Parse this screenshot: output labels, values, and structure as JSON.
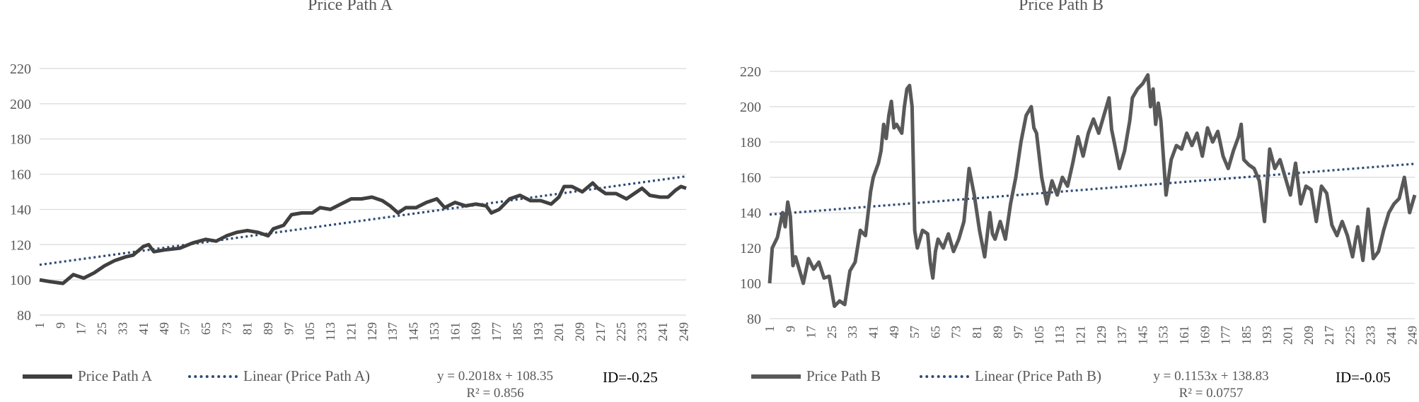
{
  "chart_data": [
    {
      "type": "line",
      "title": "Price Path A",
      "ylim": [
        80,
        220
      ],
      "y_ticks": [
        80,
        100,
        120,
        140,
        160,
        180,
        200,
        220
      ],
      "x_range": [
        1,
        250
      ],
      "x_tick_start": 1,
      "x_tick_step": 8,
      "x_ticks_shown": [
        1,
        9,
        17,
        25,
        33,
        41,
        49,
        57,
        65,
        73,
        81,
        89,
        97,
        105,
        113,
        121,
        129,
        137,
        145,
        153,
        161,
        169,
        177,
        185,
        193,
        201,
        209,
        217,
        225,
        233,
        241,
        249
      ],
      "grid": true,
      "legend_position": "bottom",
      "series": [
        {
          "name": "Price Path A",
          "color": "#404040",
          "points": [
            [
              1,
              100
            ],
            [
              5,
              99
            ],
            [
              10,
              98
            ],
            [
              14,
              103
            ],
            [
              18,
              101
            ],
            [
              22,
              104
            ],
            [
              26,
              108
            ],
            [
              30,
              111
            ],
            [
              34,
              113
            ],
            [
              37,
              114
            ],
            [
              41,
              119
            ],
            [
              43,
              120
            ],
            [
              45,
              116
            ],
            [
              49,
              117
            ],
            [
              55,
              118
            ],
            [
              60,
              121
            ],
            [
              65,
              123
            ],
            [
              69,
              122
            ],
            [
              73,
              125
            ],
            [
              77,
              127
            ],
            [
              81,
              128
            ],
            [
              85,
              127
            ],
            [
              89,
              125
            ],
            [
              91,
              129
            ],
            [
              95,
              131
            ],
            [
              98,
              137
            ],
            [
              102,
              138
            ],
            [
              106,
              138
            ],
            [
              109,
              141
            ],
            [
              113,
              140
            ],
            [
              117,
              143
            ],
            [
              121,
              146
            ],
            [
              125,
              146
            ],
            [
              129,
              147
            ],
            [
              133,
              145
            ],
            [
              136,
              142
            ],
            [
              139,
              138
            ],
            [
              142,
              141
            ],
            [
              146,
              141
            ],
            [
              150,
              144
            ],
            [
              154,
              146
            ],
            [
              157,
              141
            ],
            [
              161,
              144
            ],
            [
              165,
              142
            ],
            [
              169,
              143
            ],
            [
              173,
              142
            ],
            [
              175,
              138
            ],
            [
              178,
              140
            ],
            [
              182,
              146
            ],
            [
              186,
              148
            ],
            [
              190,
              145
            ],
            [
              194,
              145
            ],
            [
              198,
              143
            ],
            [
              201,
              147
            ],
            [
              203,
              153
            ],
            [
              206,
              153
            ],
            [
              210,
              150
            ],
            [
              214,
              155
            ],
            [
              216,
              152
            ],
            [
              219,
              149
            ],
            [
              223,
              149
            ],
            [
              227,
              146
            ],
            [
              231,
              150
            ],
            [
              233,
              152
            ],
            [
              236,
              148
            ],
            [
              240,
              147
            ],
            [
              243,
              147
            ],
            [
              246,
              151
            ],
            [
              248,
              153
            ],
            [
              250,
              152
            ]
          ]
        },
        {
          "name": "Linear (Price Path A)",
          "color": "#2e4a75",
          "style": "dotted",
          "slope": 0.2018,
          "intercept": 108.35
        }
      ],
      "equation": "y = 0.2018x + 108.35",
      "r2": "R² = 0.856",
      "id_text": "ID=-0.25"
    },
    {
      "type": "line",
      "title": "Price Path B",
      "ylim": [
        80,
        220
      ],
      "y_ticks": [
        80,
        100,
        120,
        140,
        160,
        180,
        200,
        220
      ],
      "x_range": [
        1,
        250
      ],
      "x_tick_start": 1,
      "x_tick_step": 8,
      "x_ticks_shown": [
        1,
        9,
        17,
        25,
        33,
        41,
        49,
        57,
        65,
        73,
        81,
        89,
        97,
        105,
        113,
        121,
        129,
        137,
        145,
        153,
        161,
        169,
        177,
        185,
        193,
        201,
        209,
        217,
        225,
        233,
        241,
        249
      ],
      "grid": true,
      "legend_position": "bottom",
      "series": [
        {
          "name": "Price Path B",
          "color": "#595959",
          "points": [
            [
              1,
              100
            ],
            [
              2,
              120
            ],
            [
              4,
              126
            ],
            [
              6,
              140
            ],
            [
              7,
              132
            ],
            [
              8,
              146
            ],
            [
              9,
              138
            ],
            [
              10,
              110
            ],
            [
              11,
              115
            ],
            [
              13,
              105
            ],
            [
              14,
              100
            ],
            [
              16,
              114
            ],
            [
              18,
              108
            ],
            [
              20,
              112
            ],
            [
              22,
              103
            ],
            [
              24,
              104
            ],
            [
              26,
              87
            ],
            [
              28,
              90
            ],
            [
              30,
              88
            ],
            [
              32,
              107
            ],
            [
              34,
              112
            ],
            [
              36,
              130
            ],
            [
              38,
              127
            ],
            [
              40,
              152
            ],
            [
              41,
              160
            ],
            [
              43,
              168
            ],
            [
              44,
              175
            ],
            [
              45,
              190
            ],
            [
              46,
              182
            ],
            [
              47,
              195
            ],
            [
              48,
              203
            ],
            [
              49,
              188
            ],
            [
              50,
              190
            ],
            [
              52,
              185
            ],
            [
              53,
              200
            ],
            [
              54,
              210
            ],
            [
              55,
              212
            ],
            [
              56,
              200
            ],
            [
              57,
              130
            ],
            [
              58,
              120
            ],
            [
              60,
              130
            ],
            [
              62,
              128
            ],
            [
              63,
              112
            ],
            [
              64,
              103
            ],
            [
              65,
              118
            ],
            [
              66,
              125
            ],
            [
              68,
              120
            ],
            [
              70,
              128
            ],
            [
              72,
              118
            ],
            [
              74,
              125
            ],
            [
              76,
              135
            ],
            [
              78,
              165
            ],
            [
              80,
              150
            ],
            [
              82,
              130
            ],
            [
              84,
              115
            ],
            [
              86,
              140
            ],
            [
              87,
              128
            ],
            [
              88,
              125
            ],
            [
              90,
              135
            ],
            [
              92,
              125
            ],
            [
              94,
              145
            ],
            [
              96,
              160
            ],
            [
              98,
              180
            ],
            [
              100,
              195
            ],
            [
              102,
              200
            ],
            [
              103,
              188
            ],
            [
              104,
              185
            ],
            [
              106,
              160
            ],
            [
              108,
              145
            ],
            [
              110,
              158
            ],
            [
              112,
              150
            ],
            [
              114,
              160
            ],
            [
              116,
              155
            ],
            [
              118,
              168
            ],
            [
              120,
              183
            ],
            [
              122,
              172
            ],
            [
              124,
              185
            ],
            [
              126,
              193
            ],
            [
              128,
              185
            ],
            [
              130,
              195
            ],
            [
              132,
              205
            ],
            [
              133,
              187
            ],
            [
              134,
              180
            ],
            [
              136,
              165
            ],
            [
              138,
              175
            ],
            [
              140,
              192
            ],
            [
              141,
              205
            ],
            [
              143,
              210
            ],
            [
              145,
              213
            ],
            [
              147,
              218
            ],
            [
              148,
              200
            ],
            [
              149,
              210
            ],
            [
              150,
              190
            ],
            [
              151,
              202
            ],
            [
              152,
              192
            ],
            [
              154,
              150
            ],
            [
              156,
              170
            ],
            [
              158,
              178
            ],
            [
              160,
              176
            ],
            [
              162,
              185
            ],
            [
              164,
              178
            ],
            [
              166,
              185
            ],
            [
              168,
              172
            ],
            [
              170,
              188
            ],
            [
              172,
              180
            ],
            [
              174,
              186
            ],
            [
              176,
              172
            ],
            [
              178,
              165
            ],
            [
              180,
              175
            ],
            [
              182,
              183
            ],
            [
              183,
              190
            ],
            [
              184,
              170
            ],
            [
              186,
              167
            ],
            [
              188,
              165
            ],
            [
              190,
              158
            ],
            [
              192,
              135
            ],
            [
              194,
              176
            ],
            [
              196,
              165
            ],
            [
              198,
              170
            ],
            [
              200,
              160
            ],
            [
              202,
              150
            ],
            [
              204,
              168
            ],
            [
              206,
              145
            ],
            [
              208,
              155
            ],
            [
              210,
              153
            ],
            [
              212,
              135
            ],
            [
              214,
              155
            ],
            [
              216,
              151
            ],
            [
              218,
              133
            ],
            [
              220,
              127
            ],
            [
              222,
              135
            ],
            [
              224,
              127
            ],
            [
              226,
              115
            ],
            [
              228,
              132
            ],
            [
              230,
              113
            ],
            [
              232,
              142
            ],
            [
              234,
              114
            ],
            [
              236,
              118
            ],
            [
              238,
              130
            ],
            [
              240,
              140
            ],
            [
              242,
              145
            ],
            [
              244,
              148
            ],
            [
              246,
              160
            ],
            [
              248,
              140
            ],
            [
              250,
              150
            ]
          ]
        },
        {
          "name": "Linear (Price Path B)",
          "color": "#2e4a75",
          "style": "dotted",
          "slope": 0.1153,
          "intercept": 138.83
        }
      ],
      "equation": "y = 0.1153x + 138.83",
      "r2": "R² = 0.0757",
      "id_text": "ID=-0.05"
    }
  ]
}
